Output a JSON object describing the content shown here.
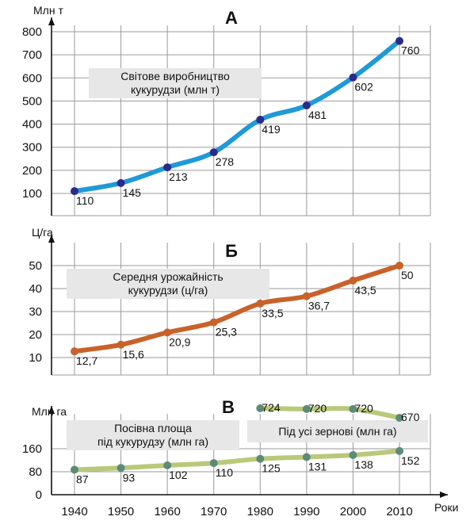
{
  "chart_data": {
    "type": "line",
    "x_label": "Роки",
    "x": [
      1940,
      1950,
      1960,
      1970,
      1980,
      1990,
      2000,
      2010
    ],
    "panels": [
      {
        "letter": "А",
        "unit": "Млн т",
        "ylim": [
          100,
          800
        ],
        "yticks": [
          100,
          200,
          300,
          400,
          500,
          600,
          700,
          800
        ],
        "note": [
          "Світове виробництво",
          "кукурудзи (млн т)"
        ],
        "series": [
          {
            "color": "#1f9ad6",
            "marker_color": "#2b2a8a",
            "x": [
              1940,
              1950,
              1960,
              1970,
              1980,
              1990,
              2000,
              2010
            ],
            "values": [
              110,
              145,
              213,
              278,
              419,
              481,
              602,
              760
            ],
            "labels": [
              "110",
              "145",
              "213",
              "278",
              "419",
              "481",
              "602",
              "760"
            ]
          }
        ]
      },
      {
        "letter": "Б",
        "unit": "Ц/га",
        "ylim": [
          10,
          50
        ],
        "yticks": [
          10,
          20,
          30,
          40,
          50
        ],
        "note": [
          "Середня урожайність",
          "кукурудзи (ц/га)"
        ],
        "series": [
          {
            "color": "#c8622a",
            "marker_color": "#c8622a",
            "x": [
              1940,
              1950,
              1960,
              1970,
              1980,
              1990,
              2000,
              2010
            ],
            "values": [
              12.7,
              15.6,
              20.9,
              25.3,
              33.5,
              36.7,
              43.5,
              50
            ],
            "labels": [
              "12,7",
              "15,6",
              "20,9",
              "25,3",
              "33,5",
              "36,7",
              "43,5",
              "50"
            ]
          }
        ]
      },
      {
        "letter": "В",
        "unit": "Млн га",
        "ylim": [
          0,
          160
        ],
        "yticks": [
          0,
          80,
          160
        ],
        "notes": [
          {
            "lines": [
              "Посівна площа",
              "під кукурудзу (млн га)"
            ]
          },
          {
            "lines": [
              "Під усі зернові (млн га)"
            ]
          }
        ],
        "series": [
          {
            "color": "#b9c97a",
            "marker_color": "#5e8a78",
            "x": [
              1940,
              1950,
              1960,
              1970,
              1980,
              1990,
              2000,
              2010
            ],
            "values": [
              87,
              93,
              102,
              110,
              125,
              131,
              138,
              152
            ],
            "labels": [
              "87",
              "93",
              "102",
              "110",
              "125",
              "131",
              "138",
              "152"
            ]
          },
          {
            "color": "#b9c97a",
            "marker_color": "#5e8a78",
            "x": [
              1980,
              1990,
              2000,
              2010
            ],
            "values": [
              724,
              720,
              720,
              670
            ],
            "labels": [
              "724",
              "720",
              "720",
              "670"
            ],
            "note": "shown on an offset scale above the main axis range"
          }
        ]
      }
    ]
  }
}
